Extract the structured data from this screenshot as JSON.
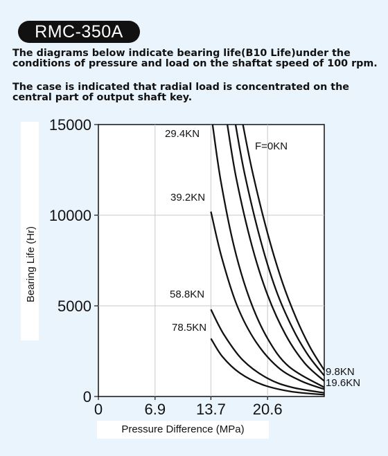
{
  "header": {
    "model_badge": "RMC-350A",
    "note_1": "The diagrams below indicate bearing life(B10 Life)under the conditions of pressure and load on the shaftat speed of 100 rpm.",
    "note_2": "The case is indicated that radial load is concentrated on the central part  of output shaft key."
  },
  "chart_data": {
    "type": "line",
    "xlabel": "Pressure Difference (MPa)",
    "ylabel": "Bearing Life (Hr)",
    "xlim": [
      0,
      27.5
    ],
    "ylim": [
      0,
      15000
    ],
    "x_ticks": [
      "0",
      "6.9",
      "13.7",
      "20.6"
    ],
    "y_ticks": [
      "0",
      "5000",
      "10000",
      "15000"
    ],
    "grid": true,
    "colors": {
      "background": "#eaf4fd",
      "plot_bg": "#ffffff",
      "line": "#111111",
      "grid": "#c8c8c8"
    },
    "series": [
      {
        "name": "F=0KN",
        "x": [
          17.6,
          18.8,
          20.6,
          22.4,
          24.1,
          25.8,
          27.5
        ],
        "y": [
          15000,
          12300,
          9000,
          6300,
          4300,
          2700,
          1450
        ]
      },
      {
        "name": "9.8KN",
        "x": [
          16.7,
          17.8,
          19.7,
          21.6,
          23.6,
          25.5,
          27.5
        ],
        "y": [
          15000,
          12300,
          8700,
          5900,
          3800,
          2300,
          1150
        ]
      },
      {
        "name": "19.6KN",
        "x": [
          15.7,
          16.8,
          18.7,
          20.6,
          22.8,
          25.1,
          27.5
        ],
        "y": [
          15000,
          12000,
          8300,
          5600,
          3400,
          1850,
          850
        ]
      },
      {
        "name": "29.4KN",
        "x": [
          13.9,
          14.9,
          16.5,
          18.4,
          20.6,
          23.2,
          27.5
        ],
        "y": [
          15000,
          11900,
          8300,
          5400,
          3200,
          1650,
          500
        ]
      },
      {
        "name": "39.2KN",
        "x": [
          13.7,
          15.0,
          16.9,
          19.2,
          21.9,
          24.7,
          27.5
        ],
        "y": [
          10200,
          7700,
          5000,
          3000,
          1600,
          850,
          400
        ]
      },
      {
        "name": "58.8KN",
        "x": [
          13.7,
          15.3,
          17.6,
          20.6,
          23.6,
          27.5
        ],
        "y": [
          4800,
          3400,
          2000,
          1000,
          500,
          200
        ]
      },
      {
        "name": "78.5KN",
        "x": [
          13.7,
          15.1,
          17.2,
          20.0,
          23.4,
          27.5
        ],
        "y": [
          3200,
          2200,
          1300,
          650,
          280,
          100
        ]
      }
    ]
  }
}
